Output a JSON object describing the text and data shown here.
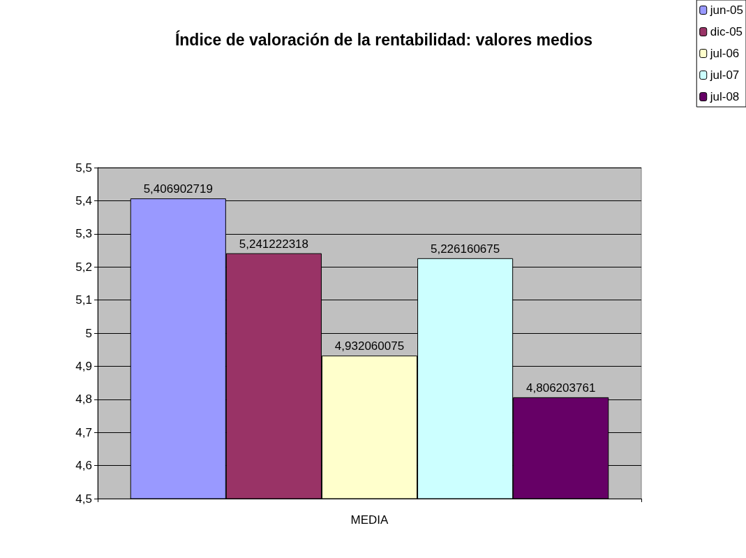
{
  "chart_data": {
    "type": "bar",
    "title": "Índice de valoración de la rentabilidad: valores medios",
    "categories": [
      "MEDIA"
    ],
    "series": [
      {
        "name": "jun-05",
        "color": "#9999ff",
        "values": [
          5.406902719
        ],
        "value_labels": [
          "5,406902719"
        ]
      },
      {
        "name": "dic-05",
        "color": "#993366",
        "values": [
          5.241222318
        ],
        "value_labels": [
          "5,241222318"
        ]
      },
      {
        "name": "jul-06",
        "color": "#ffffcc",
        "values": [
          4.932060075
        ],
        "value_labels": [
          "4,932060075"
        ]
      },
      {
        "name": "jul-07",
        "color": "#ccffff",
        "values": [
          5.226160675
        ],
        "value_labels": [
          "5,226160675"
        ]
      },
      {
        "name": "jul-08",
        "color": "#660066",
        "values": [
          4.806203761
        ],
        "value_labels": [
          "4,806203761"
        ]
      }
    ],
    "ylim": [
      4.5,
      5.5
    ],
    "yticks": [
      {
        "value": 4.5,
        "label": "4,5"
      },
      {
        "value": 4.6,
        "label": "4,6"
      },
      {
        "value": 4.7,
        "label": "4,7"
      },
      {
        "value": 4.8,
        "label": "4,8"
      },
      {
        "value": 4.9,
        "label": "4,9"
      },
      {
        "value": 5,
        "label": "5"
      },
      {
        "value": 5.1,
        "label": "5,1"
      },
      {
        "value": 5.2,
        "label": "5,2"
      },
      {
        "value": 5.3,
        "label": "5,3"
      },
      {
        "value": 5.4,
        "label": "5,4"
      },
      {
        "value": 5.5,
        "label": "5,5"
      }
    ],
    "grid": "y",
    "legend": "top right"
  }
}
